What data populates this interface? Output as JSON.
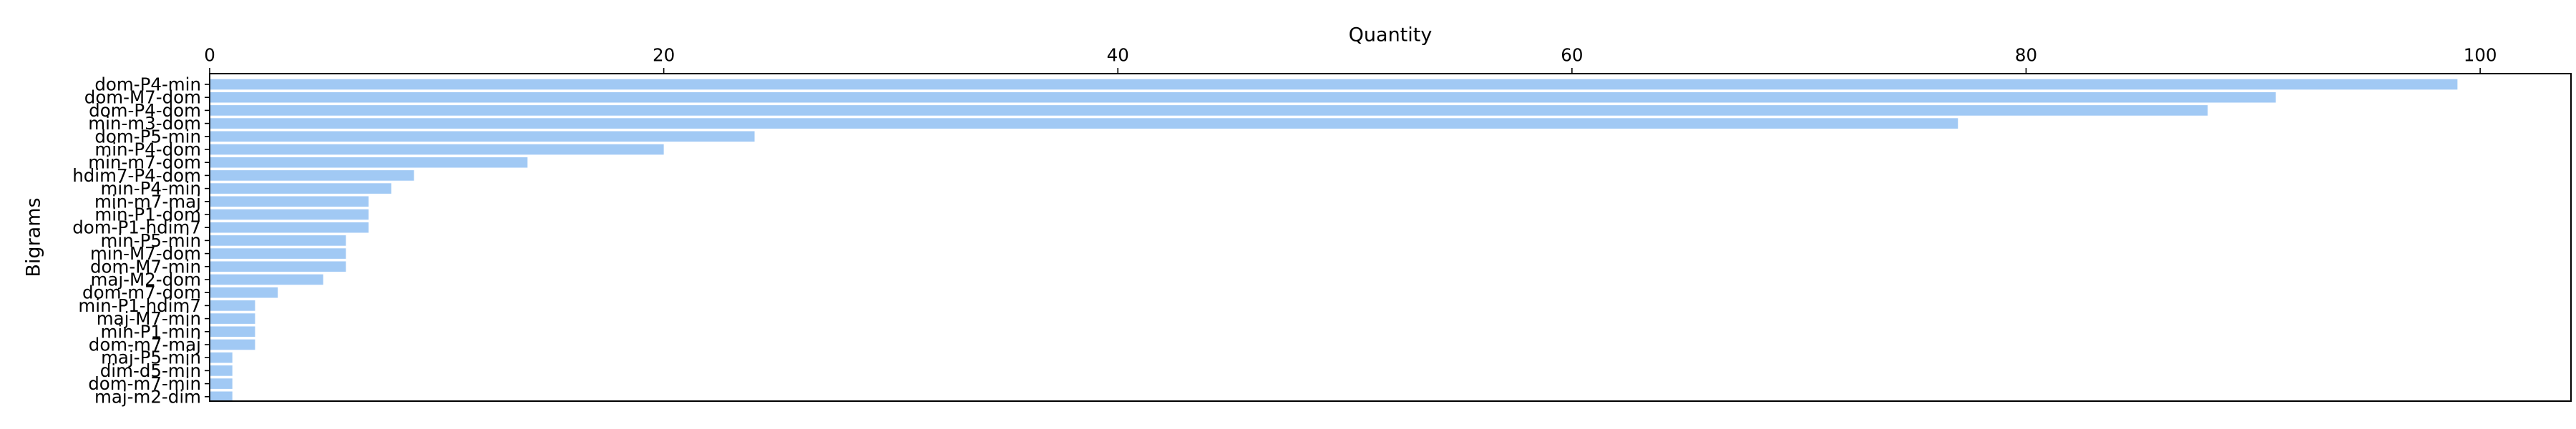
{
  "chart_data": {
    "type": "bar",
    "orientation": "horizontal",
    "xlabel": "Quantity",
    "ylabel": "Bigrams",
    "x_axis_position": "top",
    "xlim": [
      0,
      104
    ],
    "xticks": [
      0,
      20,
      40,
      60,
      80,
      100
    ],
    "grid": false,
    "bar_color": "#a1c9f4",
    "categories": [
      "dom-P4-min",
      "dom-M7-dom",
      "dom-P4-dom",
      "min-m3-dom",
      "dom-P5-min",
      "min-P4-dom",
      "min-m7-dom",
      "hdim7-P4-dom",
      "min-P4-min",
      "min-m7-maj",
      "min-P1-dom",
      "dom-P1-hdim7",
      "min-P5-min",
      "min-M7-dom",
      "dom-M7-min",
      "maj-M2-dom",
      "dom-m7-dom",
      "min-P1-hdim7",
      "maj-M7-min",
      "min-P1-min",
      "dom-m7-maj",
      "maj-P5-min",
      "dim-d5-min",
      "dom-m7-min",
      "maj-m2-dim"
    ],
    "values": [
      99,
      91,
      88,
      77,
      24,
      20,
      14,
      9,
      8,
      7,
      7,
      7,
      6,
      6,
      6,
      5,
      3,
      2,
      2,
      2,
      2,
      1,
      1,
      1,
      1
    ]
  }
}
